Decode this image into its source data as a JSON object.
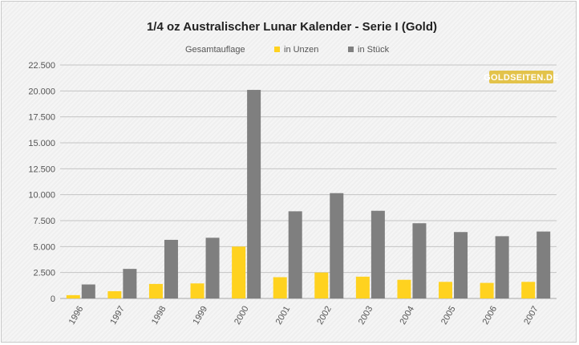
{
  "chart_data": {
    "type": "bar",
    "title": "1/4 oz Australischer Lunar Kalender - Serie I (Gold)",
    "legend_title": "Gesamtauflage",
    "legend_position": "top",
    "categories": [
      "1996",
      "1997",
      "1998",
      "1999",
      "2000",
      "2001",
      "2002",
      "2003",
      "2004",
      "2005",
      "2006",
      "2007"
    ],
    "series": [
      {
        "name": "in Unzen",
        "color": "#ffd21f",
        "values": [
          320,
          700,
          1400,
          1450,
          5000,
          2050,
          2500,
          2100,
          1800,
          1600,
          1500,
          1600
        ]
      },
      {
        "name": "in Stück",
        "color": "#7f7f7f",
        "values": [
          1350,
          2850,
          5650,
          5850,
          20100,
          8400,
          10150,
          8450,
          7250,
          6400,
          6000,
          6450
        ]
      }
    ],
    "ylim": [
      0,
      22500
    ],
    "yticks": [
      "0",
      "2.500",
      "5.000",
      "7.500",
      "10.000",
      "12.500",
      "15.000",
      "17.500",
      "20.000",
      "22.500"
    ],
    "grid": true
  },
  "watermark": {
    "text": "GOLDSEITEN.DE",
    "color": "#e3c34a"
  }
}
